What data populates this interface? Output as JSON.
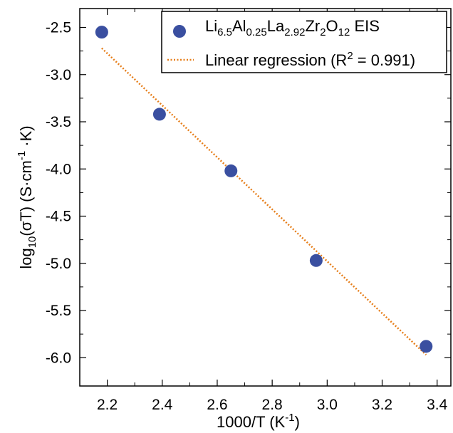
{
  "chart_data": {
    "type": "scatter",
    "xlabel": {
      "base": "1000/T (K",
      "sup": "-1",
      "tail": ")"
    },
    "ylabel": {
      "p1": "log",
      "sub1": "10",
      "p2": "(σT) (S·cm",
      "sup1": "-1",
      "p3": " ·K)"
    },
    "xlim": [
      2.1,
      3.45
    ],
    "ylim": [
      -6.3,
      -2.3
    ],
    "xticks": [
      2.2,
      2.4,
      2.6,
      2.8,
      3.0,
      3.2,
      3.4
    ],
    "xtick_labels": [
      "2.2",
      "2.4",
      "2.6",
      "2.8",
      "3.0",
      "3.2",
      "3.4"
    ],
    "yticks": [
      -6.0,
      -5.5,
      -5.0,
      -4.5,
      -4.0,
      -3.5,
      -3.0,
      -2.5
    ],
    "ytick_labels": [
      "-6.0",
      "-5.5",
      "-5.0",
      "-4.5",
      "-4.0",
      "-3.5",
      "-3.0",
      "-2.5"
    ],
    "grid": false,
    "legend_position": "top-right",
    "series": [
      {
        "kind": "scatter",
        "color": "#3a4fa0",
        "legend": [
          {
            "t": "Li",
            "k": "n"
          },
          {
            "t": "6.5",
            "k": "sub"
          },
          {
            "t": "Al",
            "k": "n"
          },
          {
            "t": "0.25",
            "k": "sub"
          },
          {
            "t": "La",
            "k": "n"
          },
          {
            "t": "2.92",
            "k": "sub"
          },
          {
            "t": "Zr",
            "k": "n"
          },
          {
            "t": "2",
            "k": "sub"
          },
          {
            "t": "O",
            "k": "n"
          },
          {
            "t": "12",
            "k": "sub"
          },
          {
            "t": " EIS",
            "k": "n"
          }
        ],
        "x": [
          2.18,
          2.39,
          2.65,
          2.96,
          3.36
        ],
        "y": [
          -2.55,
          -3.42,
          -4.02,
          -4.97,
          -5.88
        ]
      },
      {
        "kind": "line",
        "style": "dotted",
        "color": "#e67e1a",
        "legend": [
          {
            "t": "Linear regression (R",
            "k": "n"
          },
          {
            "t": "2",
            "k": "sup"
          },
          {
            "t": " = 0.991)",
            "k": "n"
          }
        ],
        "x": [
          2.18,
          3.36
        ],
        "y": [
          -2.72,
          -5.97
        ]
      }
    ]
  }
}
